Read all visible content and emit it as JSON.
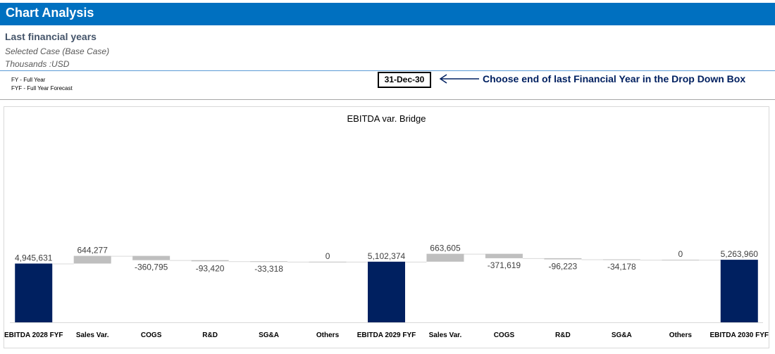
{
  "header": {
    "title": "Chart Analysis",
    "subtitle": "Last financial years",
    "case_note": "Selected Case (Base Case)",
    "units_note": "Thousands :USD"
  },
  "legend_notes": [
    "FY - Full Year",
    "FYF - Full Year Forecast"
  ],
  "selector": {
    "value": "31-Dec-30",
    "instruction": "Choose end of last Financial Year in the Drop Down Box"
  },
  "colors": {
    "title_bar": "#0070c0",
    "total_bar": "#002060",
    "delta_bar": "#bfbfbf",
    "instruction_text": "#002060"
  },
  "chart_data": {
    "type": "bar",
    "subtype": "waterfall",
    "title": "EBITDA var. Bridge",
    "categories": [
      "EBITDA 2028 FYF",
      "Sales Var.",
      "COGS",
      "R&D",
      "SG&A",
      "Others",
      "EBITDA 2029 FYF",
      "Sales Var.",
      "COGS",
      "R&D",
      "SG&A",
      "Others",
      "EBITDA 2030 FYF"
    ],
    "values": [
      4945631,
      644277,
      -360795,
      -93420,
      -33318,
      0,
      5102374,
      663605,
      -371619,
      -96223,
      -34178,
      0,
      5263960
    ],
    "labels": [
      "4,945,631",
      "644,277",
      "-360,795",
      "-93,420",
      "-33,318",
      "0",
      "5,102,374",
      "663,605",
      "-371,619",
      "-96,223",
      "-34,178",
      "0",
      "5,263,960"
    ],
    "kinds": [
      "total",
      "delta",
      "delta",
      "delta",
      "delta",
      "delta",
      "total",
      "delta",
      "delta",
      "delta",
      "delta",
      "delta",
      "total"
    ],
    "ylim": [
      0,
      18000000
    ],
    "grid": false,
    "legend": "none",
    "xlabel": "",
    "ylabel": ""
  }
}
